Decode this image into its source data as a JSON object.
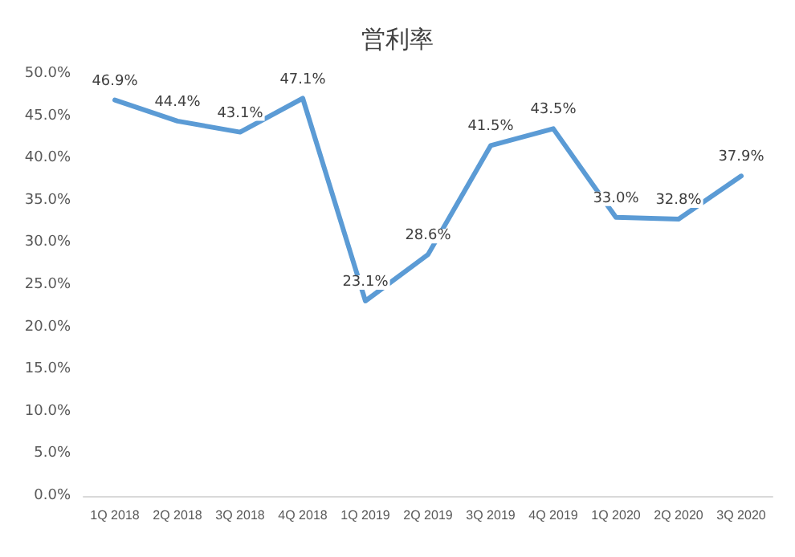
{
  "chart_data": {
    "type": "line",
    "title": "営利率",
    "categories": [
      "1Q 2018",
      "2Q 2018",
      "3Q 2018",
      "4Q 2018",
      "1Q 2019",
      "2Q 2019",
      "3Q 2019",
      "4Q 2019",
      "1Q 2020",
      "2Q 2020",
      "3Q 2020"
    ],
    "series": [
      {
        "color": "#5b9bd5",
        "values": [
          46.9,
          44.4,
          43.1,
          47.1,
          23.1,
          28.6,
          41.5,
          43.5,
          33.0,
          32.8,
          37.9
        ],
        "value_labels": [
          "46.9%",
          "44.4%",
          "43.1%",
          "47.1%",
          "23.1%",
          "28.6%",
          "41.5%",
          "43.5%",
          "33.0%",
          "32.8%",
          "37.9%"
        ]
      }
    ],
    "ylim": [
      0,
      50
    ],
    "yticks": [
      {
        "value": 0,
        "label": "0.0%"
      },
      {
        "value": 5,
        "label": "5.0%"
      },
      {
        "value": 10,
        "label": "10.0%"
      },
      {
        "value": 15,
        "label": "15.0%"
      },
      {
        "value": 20,
        "label": "20.0%"
      },
      {
        "value": 25,
        "label": "25.0%"
      },
      {
        "value": 30,
        "label": "30.0%"
      },
      {
        "value": 35,
        "label": "35.0%"
      },
      {
        "value": 40,
        "label": "40.0%"
      },
      {
        "value": 45,
        "label": "45.0%"
      },
      {
        "value": 50,
        "label": "50.0%"
      }
    ],
    "grid": false,
    "marker": "none",
    "line_style": "solid"
  }
}
